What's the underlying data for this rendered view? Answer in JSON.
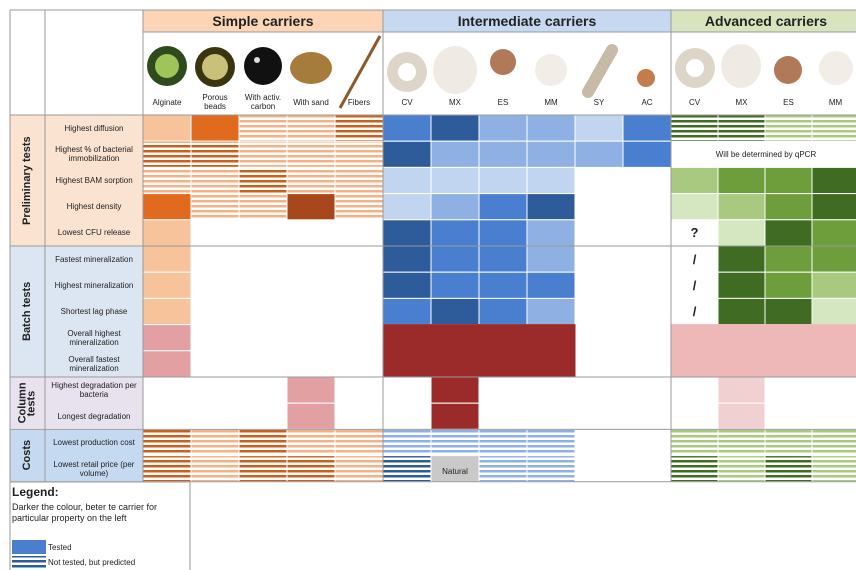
{
  "groups": [
    {
      "title": "Simple carriers",
      "columns": [
        "Alginate",
        "Porous beads",
        "With activ. carbon",
        "With sand",
        "Fibers"
      ]
    },
    {
      "title": "Intermediate carriers",
      "columns": [
        "CV",
        "MX",
        "ES",
        "MM",
        "SY",
        "AC"
      ]
    },
    {
      "title": "Advanced carriers",
      "columns": [
        "CV",
        "MX",
        "ES",
        "MM"
      ]
    }
  ],
  "sections": [
    {
      "title": "Preliminary tests",
      "rows": [
        "Highest diffusion",
        "Highest % of bacterial immobilization",
        "Highest BAM sorption",
        "Highest density",
        "Lowest CFU release"
      ]
    },
    {
      "title": "Batch tests",
      "rows": [
        "Fastest mineralization",
        "Highest mineralization",
        "Shortest lag phase",
        "Overall highest mineralization",
        "Overall fastest mineralization"
      ]
    },
    {
      "title": "Column tests",
      "rows": [
        "Highest degradation per bacteria",
        "Longest degradation"
      ]
    },
    {
      "title": "Costs",
      "rows": [
        "Lowest production cost",
        "Lowest retail price (per volume)"
      ]
    }
  ],
  "notes": {
    "qpcr": "Will be determined by qPCR",
    "unknown": "?",
    "not_applicable": [
      "/",
      "/",
      "/"
    ],
    "natural": "Natural"
  },
  "legend": {
    "title": "Legend:",
    "description": "Darker the colour, beter te carrier for particular property on the left",
    "items": [
      "Tested",
      "Not tested, but predicted"
    ]
  }
}
